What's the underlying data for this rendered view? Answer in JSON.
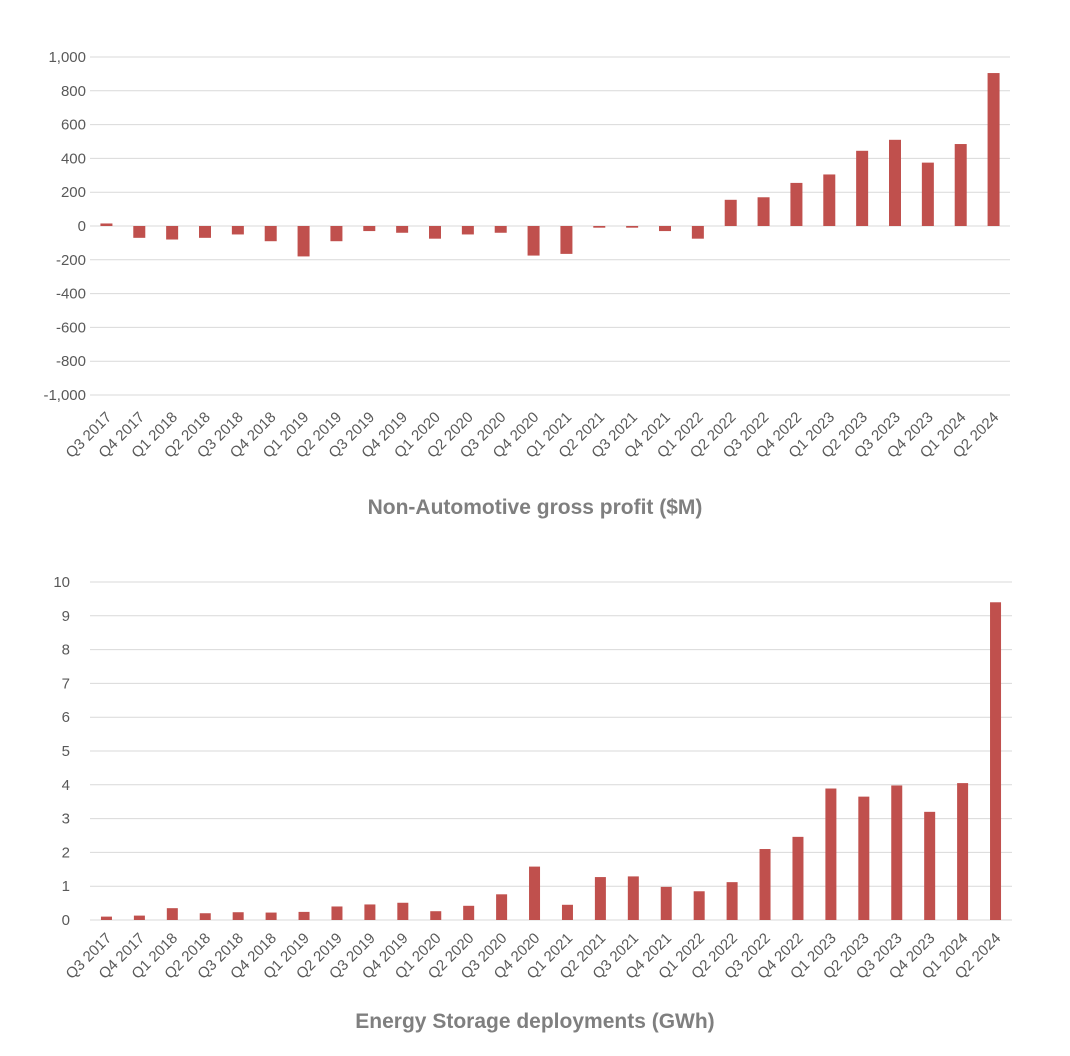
{
  "bar_color": "#c0504d",
  "grid_color": "#d9d9d9",
  "text_color": "#595959",
  "title_color": "#7f7f7f",
  "chart_data": [
    {
      "type": "bar",
      "title": "Non-Automotive gross profit ($M)",
      "xlabel": "",
      "ylabel": "",
      "ylim": [
        -1000,
        1000
      ],
      "yticks": [
        1000,
        800,
        600,
        400,
        200,
        0,
        -200,
        -400,
        -600,
        -800,
        -1000
      ],
      "ytick_labels": [
        "1,000",
        "800",
        "600",
        "400",
        "200",
        "0",
        "-200",
        "-400",
        "-600",
        "-800",
        "-1,000"
      ],
      "grid": true,
      "categories": [
        "Q3 2017",
        "Q4 2017",
        "Q1 2018",
        "Q2 2018",
        "Q3 2018",
        "Q4 2018",
        "Q1 2019",
        "Q2 2019",
        "Q3 2019",
        "Q4 2019",
        "Q1 2020",
        "Q2 2020",
        "Q3 2020",
        "Q4 2020",
        "Q1 2021",
        "Q2 2021",
        "Q3 2021",
        "Q4 2021",
        "Q1 2022",
        "Q2 2022",
        "Q3 2022",
        "Q4 2022",
        "Q1 2023",
        "Q2 2023",
        "Q3 2023",
        "Q4 2023",
        "Q1 2024",
        "Q2 2024"
      ],
      "values": [
        15,
        -70,
        -80,
        -70,
        -50,
        -90,
        -180,
        -90,
        -30,
        -40,
        -75,
        -50,
        -40,
        -175,
        -165,
        -10,
        -10,
        -30,
        -75,
        155,
        170,
        255,
        305,
        445,
        510,
        375,
        485,
        905
      ]
    },
    {
      "type": "bar",
      "title": "Energy Storage deployments (GWh)",
      "xlabel": "",
      "ylabel": "",
      "ylim": [
        0,
        10
      ],
      "yticks": [
        10,
        9,
        8,
        7,
        6,
        5,
        4,
        3,
        2,
        1,
        0
      ],
      "ytick_labels": [
        "10",
        "9",
        "8",
        "7",
        "6",
        "5",
        "4",
        "3",
        "2",
        "1",
        "0"
      ],
      "grid": true,
      "categories": [
        "Q3 2017",
        "Q4 2017",
        "Q1 2018",
        "Q2 2018",
        "Q3 2018",
        "Q4 2018",
        "Q1 2019",
        "Q2 2019",
        "Q3 2019",
        "Q4 2019",
        "Q1 2020",
        "Q2 2020",
        "Q3 2020",
        "Q4 2020",
        "Q1 2021",
        "Q2 2021",
        "Q3 2021",
        "Q4 2021",
        "Q1 2022",
        "Q2 2022",
        "Q3 2022",
        "Q4 2022",
        "Q1 2023",
        "Q2 2023",
        "Q3 2023",
        "Q4 2023",
        "Q1 2024",
        "Q2 2024"
      ],
      "values": [
        0.1,
        0.13,
        0.35,
        0.2,
        0.23,
        0.22,
        0.24,
        0.4,
        0.46,
        0.51,
        0.26,
        0.42,
        0.76,
        1.58,
        0.45,
        1.27,
        1.29,
        0.98,
        0.85,
        1.12,
        2.1,
        2.46,
        3.89,
        3.65,
        3.98,
        3.2,
        4.05,
        9.4
      ]
    }
  ]
}
